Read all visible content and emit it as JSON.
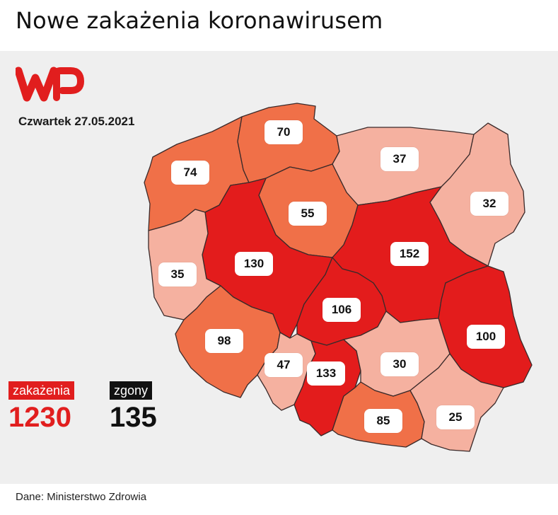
{
  "title": "Nowe zakażenia koronawirusem",
  "date": "Czwartek 27.05.2021",
  "logo": {
    "text": "WP",
    "color": "#e11e1e"
  },
  "colors": {
    "high": "#e31c1c",
    "medium": "#f07048",
    "low": "#f5b1a0",
    "border": "#3a2a2a"
  },
  "regions": [
    {
      "id": "zachodniopomorskie",
      "value": "74",
      "level": "medium"
    },
    {
      "id": "pomorskie",
      "value": "70",
      "level": "medium"
    },
    {
      "id": "warminsko-mazurskie",
      "value": "37",
      "level": "low"
    },
    {
      "id": "podlaskie",
      "value": "32",
      "level": "low"
    },
    {
      "id": "kujawsko-pomorskie",
      "value": "55",
      "level": "medium"
    },
    {
      "id": "lubuskie",
      "value": "35",
      "level": "low"
    },
    {
      "id": "wielkopolskie",
      "value": "130",
      "level": "high"
    },
    {
      "id": "mazowieckie",
      "value": "152",
      "level": "high"
    },
    {
      "id": "lodzkie",
      "value": "106",
      "level": "high"
    },
    {
      "id": "lubelskie",
      "value": "100",
      "level": "high"
    },
    {
      "id": "dolnoslaskie",
      "value": "98",
      "level": "medium"
    },
    {
      "id": "opolskie",
      "value": "47",
      "level": "low"
    },
    {
      "id": "slaskie",
      "value": "133",
      "level": "high"
    },
    {
      "id": "swietokrzyskie",
      "value": "30",
      "level": "low"
    },
    {
      "id": "malopolskie",
      "value": "85",
      "level": "medium"
    },
    {
      "id": "podkarpackie",
      "value": "25",
      "level": "low"
    }
  ],
  "totals": {
    "infections_label": "zakażenia",
    "infections_value": "1230",
    "deaths_label": "zgony",
    "deaths_value": "135"
  },
  "source": "Dane: Ministerstwo Zdrowia"
}
